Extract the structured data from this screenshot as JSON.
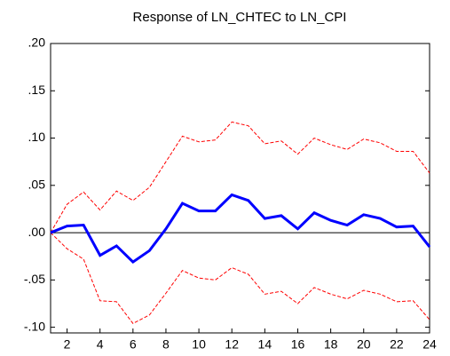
{
  "chart_data": {
    "type": "line",
    "title": "Response of LN_CHTEC to LN_CPI",
    "x": [
      1,
      2,
      3,
      4,
      5,
      6,
      7,
      8,
      9,
      10,
      11,
      12,
      13,
      14,
      15,
      16,
      17,
      18,
      19,
      20,
      21,
      22,
      23,
      24
    ],
    "xlim": [
      1,
      24
    ],
    "xticks": [
      2,
      4,
      6,
      8,
      10,
      12,
      14,
      16,
      18,
      20,
      22,
      24
    ],
    "ylim": [
      -0.106,
      0.2
    ],
    "yticks": [
      {
        "value": -0.1,
        "label": "-.10"
      },
      {
        "value": -0.05,
        "label": "-.05"
      },
      {
        "value": 0,
        "label": ".00"
      },
      {
        "value": 0.05,
        "label": ".05"
      },
      {
        "value": 0.1,
        "label": ".10"
      },
      {
        "value": 0.15,
        "label": ".15"
      },
      {
        "value": 0.2,
        "label": ".20"
      }
    ],
    "zero_line": true,
    "series": [
      {
        "color": "#ff0000",
        "dashed": true,
        "values": [
          0,
          0.03,
          0.043,
          0.024,
          0.044,
          0.034,
          0.048,
          0.075,
          0.102,
          0.096,
          0.098,
          0.117,
          0.113,
          0.094,
          0.097,
          0.083,
          0.1,
          0.093,
          0.088,
          0.099,
          0.095,
          0.086,
          0.086,
          0.063
        ]
      },
      {
        "color": "#ff0000",
        "dashed": true,
        "values": [
          0,
          -0.017,
          -0.028,
          -0.072,
          -0.073,
          -0.096,
          -0.087,
          -0.064,
          -0.04,
          -0.048,
          -0.05,
          -0.037,
          -0.044,
          -0.065,
          -0.062,
          -0.075,
          -0.058,
          -0.065,
          -0.07,
          -0.061,
          -0.065,
          -0.073,
          -0.072,
          -0.092
        ]
      },
      {
        "color": "#0000ff",
        "dashed": false,
        "values": [
          0,
          0.007,
          0.008,
          -0.024,
          -0.014,
          -0.031,
          -0.019,
          0.004,
          0.031,
          0.023,
          0.023,
          0.04,
          0.034,
          0.015,
          0.018,
          0.004,
          0.021,
          0.013,
          0.008,
          0.019,
          0.015,
          0.006,
          0.007,
          -0.015
        ]
      }
    ]
  }
}
